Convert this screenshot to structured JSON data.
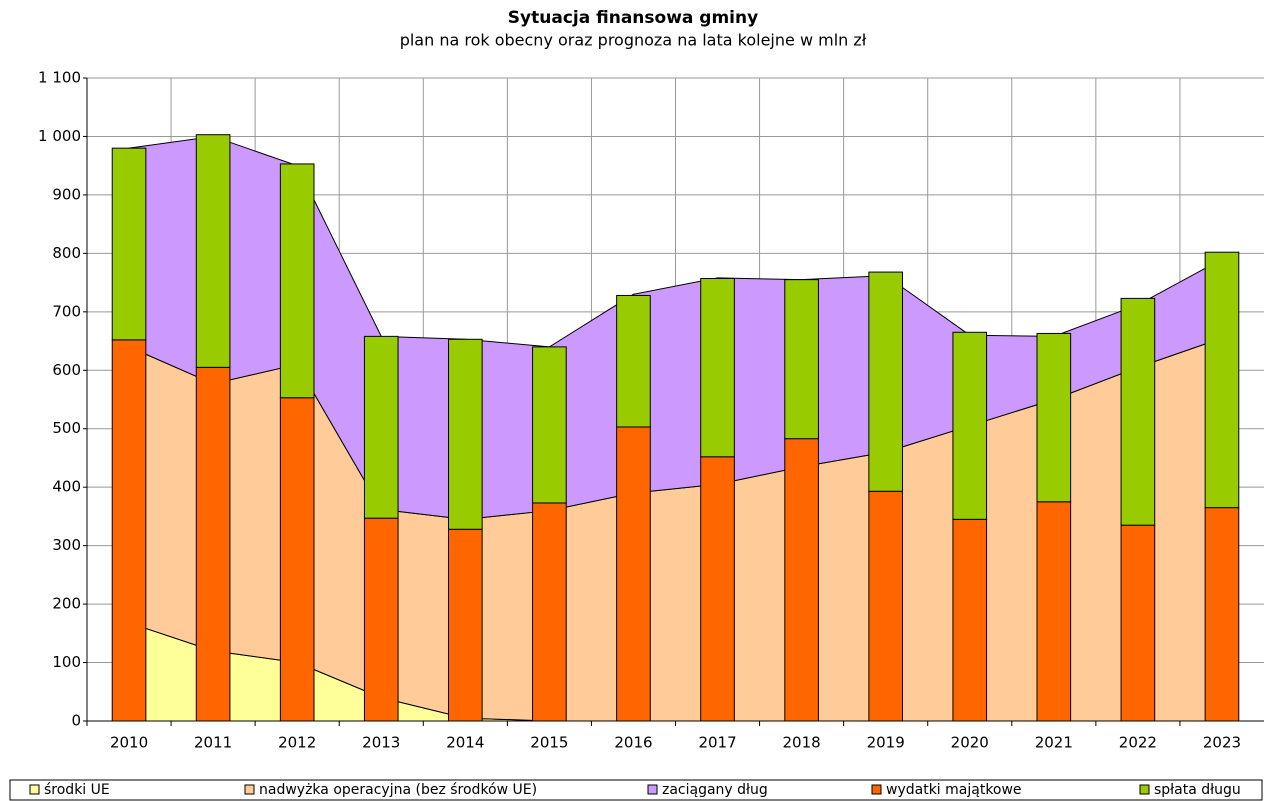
{
  "chart_data": {
    "type": "bar",
    "title": "Sytuacja finansowa gminy",
    "subtitle": "plan na rok obecny oraz prognoza na lata kolejne w mln zł",
    "categories": [
      "2010",
      "2011",
      "2012",
      "2013",
      "2014",
      "2015",
      "2016",
      "2017",
      "2018",
      "2019",
      "2020",
      "2021",
      "2022",
      "2023"
    ],
    "series": [
      {
        "name": "środki UE",
        "type": "area",
        "color": "#ffff99",
        "values": [
          168,
          120,
          100,
          40,
          5,
          0,
          0,
          0,
          0,
          0,
          0,
          0,
          0,
          0
        ]
      },
      {
        "name": "nadwyżka operacyjna (bez środków UE)",
        "type": "area",
        "color": "#ffcc99",
        "values": [
          472,
          457,
          510,
          322,
          340,
          360,
          390,
          405,
          435,
          460,
          505,
          550,
          605,
          655
        ]
      },
      {
        "name": "zaciągany dług",
        "type": "area",
        "color": "#cc99ff",
        "values": [
          340,
          423,
          340,
          296,
          308,
          280,
          340,
          353,
          320,
          302,
          155,
          108,
          107,
          135
        ]
      },
      {
        "name": "wydatki majątkowe",
        "type": "bar",
        "color": "#ff6600",
        "values": [
          652,
          605,
          553,
          347,
          328,
          373,
          503,
          452,
          483,
          393,
          345,
          375,
          335,
          365
        ]
      },
      {
        "name": "spłata długu",
        "type": "bar",
        "color": "#99cc00",
        "values": [
          328,
          398,
          400,
          311,
          325,
          267,
          225,
          305,
          272,
          375,
          320,
          288,
          388,
          437
        ]
      }
    ],
    "ylim": [
      0,
      1100
    ],
    "yticks": [
      0,
      100,
      200,
      300,
      400,
      500,
      600,
      700,
      800,
      900,
      {
        "value": 1000,
        "label": "1 000"
      },
      {
        "value": 1100,
        "label": "1 100"
      }
    ],
    "grid": true,
    "legend": "bottom"
  }
}
